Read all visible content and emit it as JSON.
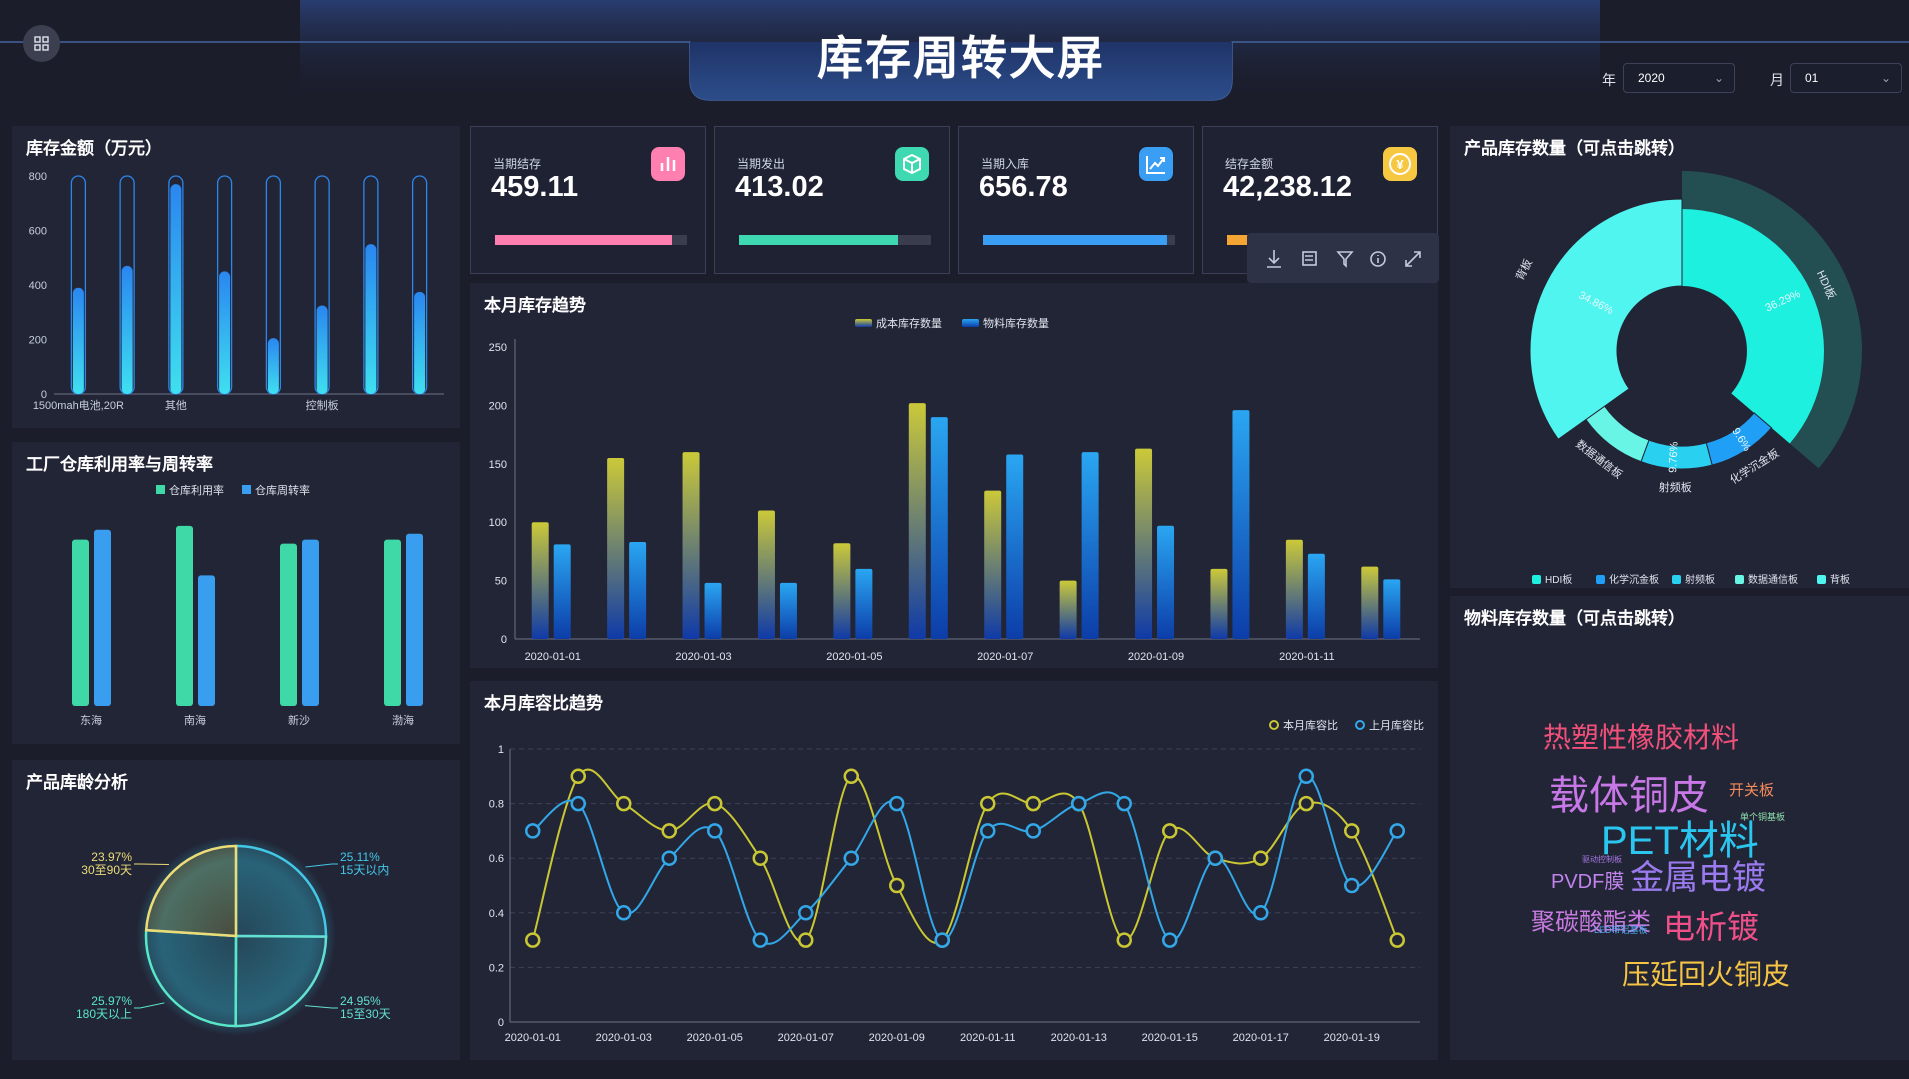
{
  "header": {
    "title": "库存周转大屏",
    "year_label": "年",
    "year_value": "2020",
    "month_label": "月",
    "month_value": "01"
  },
  "colors": {
    "bg": "#1b1d2b",
    "panel": "#222536",
    "cyan": "#1ef0e0",
    "blue": "#2aa6f2",
    "green": "#3ed9a6",
    "yellow": "#c9c733",
    "pink": "#ff7fb0"
  },
  "kpis": [
    {
      "label": "当期结存",
      "value": "459.11",
      "icon": "bar-chart-icon",
      "color": "#ff7fb0",
      "progress": 0.92
    },
    {
      "label": "当期发出",
      "value": "413.02",
      "icon": "cube-icon",
      "color": "#3ed9b0",
      "progress": 0.83
    },
    {
      "label": "当期入库",
      "value": "656.78",
      "icon": "trend-chart-icon",
      "color": "#3a9ef5",
      "progress": 0.96
    },
    {
      "label": "结存金额",
      "value": "42,238.12",
      "icon": "yen-icon",
      "color": "#f4a534",
      "progress": 0.2
    }
  ],
  "toolbox": [
    "download-icon",
    "data-view-icon",
    "filter-icon",
    "info-icon",
    "fullscreen-icon"
  ],
  "panels": {
    "inventory_amount": "库存金额（万元）",
    "warehouse": "工厂仓库利用率与周转率",
    "age": "产品库龄分析",
    "trend": "本月库存趋势",
    "ratio": "本月库容比趋势",
    "product_qty": "产品库存数量（可点击跳转）",
    "material_qty": "物料库存数量（可点击跳转）"
  },
  "chart_data": [
    {
      "id": "inventory_amount",
      "type": "bar",
      "categories": [
        "1500mah电池,20R",
        "",
        "其他",
        "",
        "",
        "控制板",
        "",
        ""
      ],
      "values": [
        390,
        470,
        770,
        450,
        205,
        325,
        550,
        375
      ],
      "yticks": [
        0,
        200,
        400,
        600,
        800
      ],
      "ylim": [
        0,
        800
      ]
    },
    {
      "id": "warehouse",
      "type": "bar",
      "categories": [
        "东海",
        "南海",
        "新沙",
        "渤海"
      ],
      "series": [
        {
          "name": "仓库利用率",
          "values": [
            0.84,
            0.91,
            0.82,
            0.84
          ]
        },
        {
          "name": "仓库周转率",
          "values": [
            0.89,
            0.66,
            0.84,
            0.87
          ]
        }
      ],
      "ylim": [
        0,
        1
      ]
    },
    {
      "id": "age",
      "type": "pie",
      "slices": [
        {
          "label": "15天以内",
          "value": 25.11,
          "pct": "25.11%"
        },
        {
          "label": "15至30天",
          "value": 24.95,
          "pct": "24.95%"
        },
        {
          "label": "180天以上",
          "value": 25.97,
          "pct": "25.97%"
        },
        {
          "label": "30至90天",
          "value": 23.97,
          "pct": "23.97%"
        }
      ]
    },
    {
      "id": "trend",
      "type": "bar",
      "x": [
        "2020-01-01",
        "2020-01-02",
        "2020-01-03",
        "2020-01-04",
        "2020-01-05",
        "2020-01-06",
        "2020-01-07",
        "2020-01-08",
        "2020-01-09",
        "2020-01-10",
        "2020-01-11",
        "2020-01-12"
      ],
      "xtick_labels": [
        "2020-01-01",
        "2020-01-03",
        "2020-01-05",
        "2020-01-07",
        "2020-01-09",
        "2020-01-11"
      ],
      "series": [
        {
          "name": "成本库存数量",
          "values": [
            100,
            155,
            160,
            110,
            82,
            202,
            127,
            50,
            163,
            60,
            85,
            62
          ]
        },
        {
          "name": "物料库存数量",
          "values": [
            81,
            83,
            48,
            48,
            60,
            190,
            158,
            160,
            97,
            196,
            73,
            51
          ]
        }
      ],
      "yticks": [
        0,
        50,
        100,
        150,
        200,
        250
      ],
      "ylim": [
        0,
        250
      ]
    },
    {
      "id": "ratio",
      "type": "line",
      "x": [
        "2020-01-01",
        "2020-01-02",
        "2020-01-03",
        "2020-01-04",
        "2020-01-05",
        "2020-01-06",
        "2020-01-07",
        "2020-01-08",
        "2020-01-09",
        "2020-01-10",
        "2020-01-11",
        "2020-01-12",
        "2020-01-13",
        "2020-01-14",
        "2020-01-15",
        "2020-01-16",
        "2020-01-17",
        "2020-01-18",
        "2020-01-19",
        "2020-01-20"
      ],
      "xtick_labels": [
        "2020-01-01",
        "2020-01-03",
        "2020-01-05",
        "2020-01-07",
        "2020-01-09",
        "2020-01-11",
        "2020-01-13",
        "2020-01-15",
        "2020-01-17",
        "2020-01-19"
      ],
      "series": [
        {
          "name": "本月库容比",
          "values": [
            0.3,
            0.9,
            0.8,
            0.7,
            0.8,
            0.6,
            0.3,
            0.9,
            0.5,
            0.3,
            0.8,
            0.8,
            0.8,
            0.3,
            0.7,
            0.6,
            0.6,
            0.8,
            0.7,
            0.3
          ]
        },
        {
          "name": "上月库容比",
          "values": [
            0.7,
            0.8,
            0.4,
            0.6,
            0.7,
            0.3,
            0.4,
            0.6,
            0.8,
            0.3,
            0.7,
            0.7,
            0.8,
            0.8,
            0.3,
            0.6,
            0.4,
            0.9,
            0.5,
            0.7
          ]
        }
      ],
      "yticks": [
        0,
        0.2,
        0.4,
        0.6,
        0.8,
        1
      ],
      "ylim": [
        0,
        1
      ]
    },
    {
      "id": "product_qty",
      "type": "pie",
      "slices": [
        {
          "label": "HDI板",
          "value": 36.29,
          "pct": "36.29%",
          "color": "#1ef0e0"
        },
        {
          "label": "化学沉金板",
          "value": 9.6,
          "pct": "9.6%",
          "color": "#1f9ff5"
        },
        {
          "label": "射频板",
          "value": 9.76,
          "pct": "9.76%",
          "color": "#2ad0f0"
        },
        {
          "label": "数据通信板",
          "value": 9.49,
          "pct": "",
          "color": "#68f5e5"
        },
        {
          "label": "背板",
          "value": 34.86,
          "pct": "34.86%",
          "color": "#4ff5ee"
        }
      ]
    }
  ],
  "wordcloud": [
    {
      "text": "热塑性橡胶材料",
      "color": "#f0507a",
      "size": 28
    },
    {
      "text": "载体铜皮",
      "color": "#c878e6",
      "size": 40
    },
    {
      "text": "开关板",
      "color": "#f58a5a",
      "size": 15
    },
    {
      "text": "单个铜基板",
      "color": "#8fe0ad",
      "size": 9
    },
    {
      "text": "PET材料",
      "color": "#2ac6f0",
      "size": 40
    },
    {
      "text": "驱动控制板",
      "color": "#a878e6",
      "size": 8
    },
    {
      "text": "PVDF膜",
      "color": "#c084ec",
      "size": 20
    },
    {
      "text": "金属电镀",
      "color": "#9a7aee",
      "size": 34
    },
    {
      "text": "聚碳酸酯类",
      "color": "#c77ae0",
      "size": 24
    },
    {
      "text": "LED带铝基板",
      "color": "#4ea8f0",
      "size": 9
    },
    {
      "text": "电析镀",
      "color": "#f0508a",
      "size": 32
    },
    {
      "text": "压延回火铜皮",
      "color": "#f5c445",
      "size": 28
    }
  ]
}
